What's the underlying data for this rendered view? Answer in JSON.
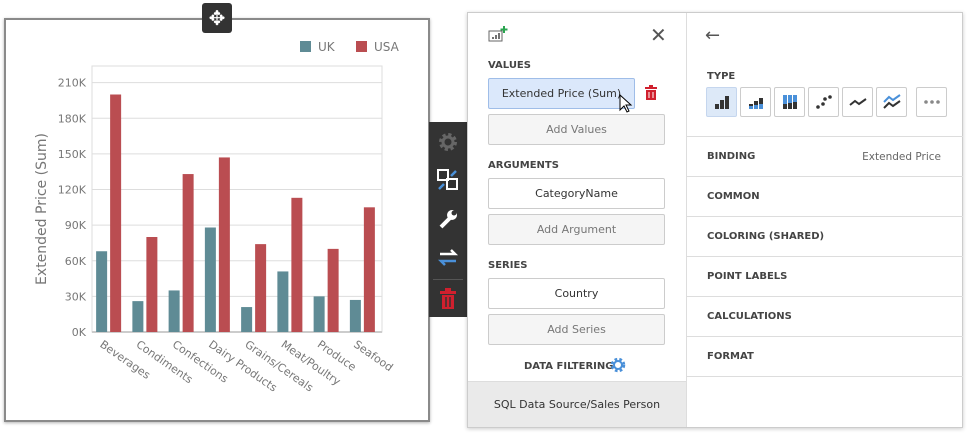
{
  "chart_data": {
    "type": "bar",
    "categories": [
      "Beverages",
      "Condiments",
      "Confections",
      "Dairy Products",
      "Grains/Cereals",
      "Meat/Poultry",
      "Produce",
      "Seafood"
    ],
    "series": [
      {
        "name": "UK",
        "color": "#5f8b95",
        "values": [
          68000,
          26000,
          35000,
          88000,
          21000,
          51000,
          30000,
          27000
        ]
      },
      {
        "name": "USA",
        "color": "#ba4d51",
        "values": [
          200000,
          80000,
          133000,
          147000,
          74000,
          113000,
          70000,
          105000
        ]
      }
    ],
    "ylabel": "Extended Price (Sum)",
    "yticks": [
      "0K",
      "30K",
      "60K",
      "90K",
      "120K",
      "150K",
      "180K",
      "210K"
    ],
    "ylim": [
      0,
      224000
    ],
    "grid": true,
    "legend": "top-right"
  },
  "toolbar": {
    "icons": [
      "gear-icon",
      "swap-layout-icon",
      "wrench-icon",
      "arrows-exchange-icon",
      "trash-icon"
    ]
  },
  "binding_panel": {
    "values_label": "VALUES",
    "values_item": "Extended Price (Sum)",
    "add_values": "Add Values",
    "arguments_label": "ARGUMENTS",
    "arguments_item": "CategoryName",
    "add_argument": "Add Argument",
    "series_label": "SERIES",
    "series_item": "Country",
    "add_series": "Add Series",
    "data_filtering": "DATA FILTERING",
    "data_source": "SQL Data Source/Sales Person"
  },
  "options_panel": {
    "type_label": "TYPE",
    "types": [
      "bar",
      "stacked-bar",
      "full-stacked-bar",
      "point",
      "line",
      "stacked-line",
      "more"
    ],
    "rows": [
      {
        "label": "BINDING",
        "value": "Extended Price"
      },
      {
        "label": "COMMON"
      },
      {
        "label": "COLORING (SHARED)"
      },
      {
        "label": "POINT LABELS"
      },
      {
        "label": "CALCULATIONS"
      },
      {
        "label": "FORMAT"
      }
    ]
  },
  "colors": {
    "accent": "#4a90d9",
    "delete": "#d0202e",
    "add": "#2aa44f"
  }
}
